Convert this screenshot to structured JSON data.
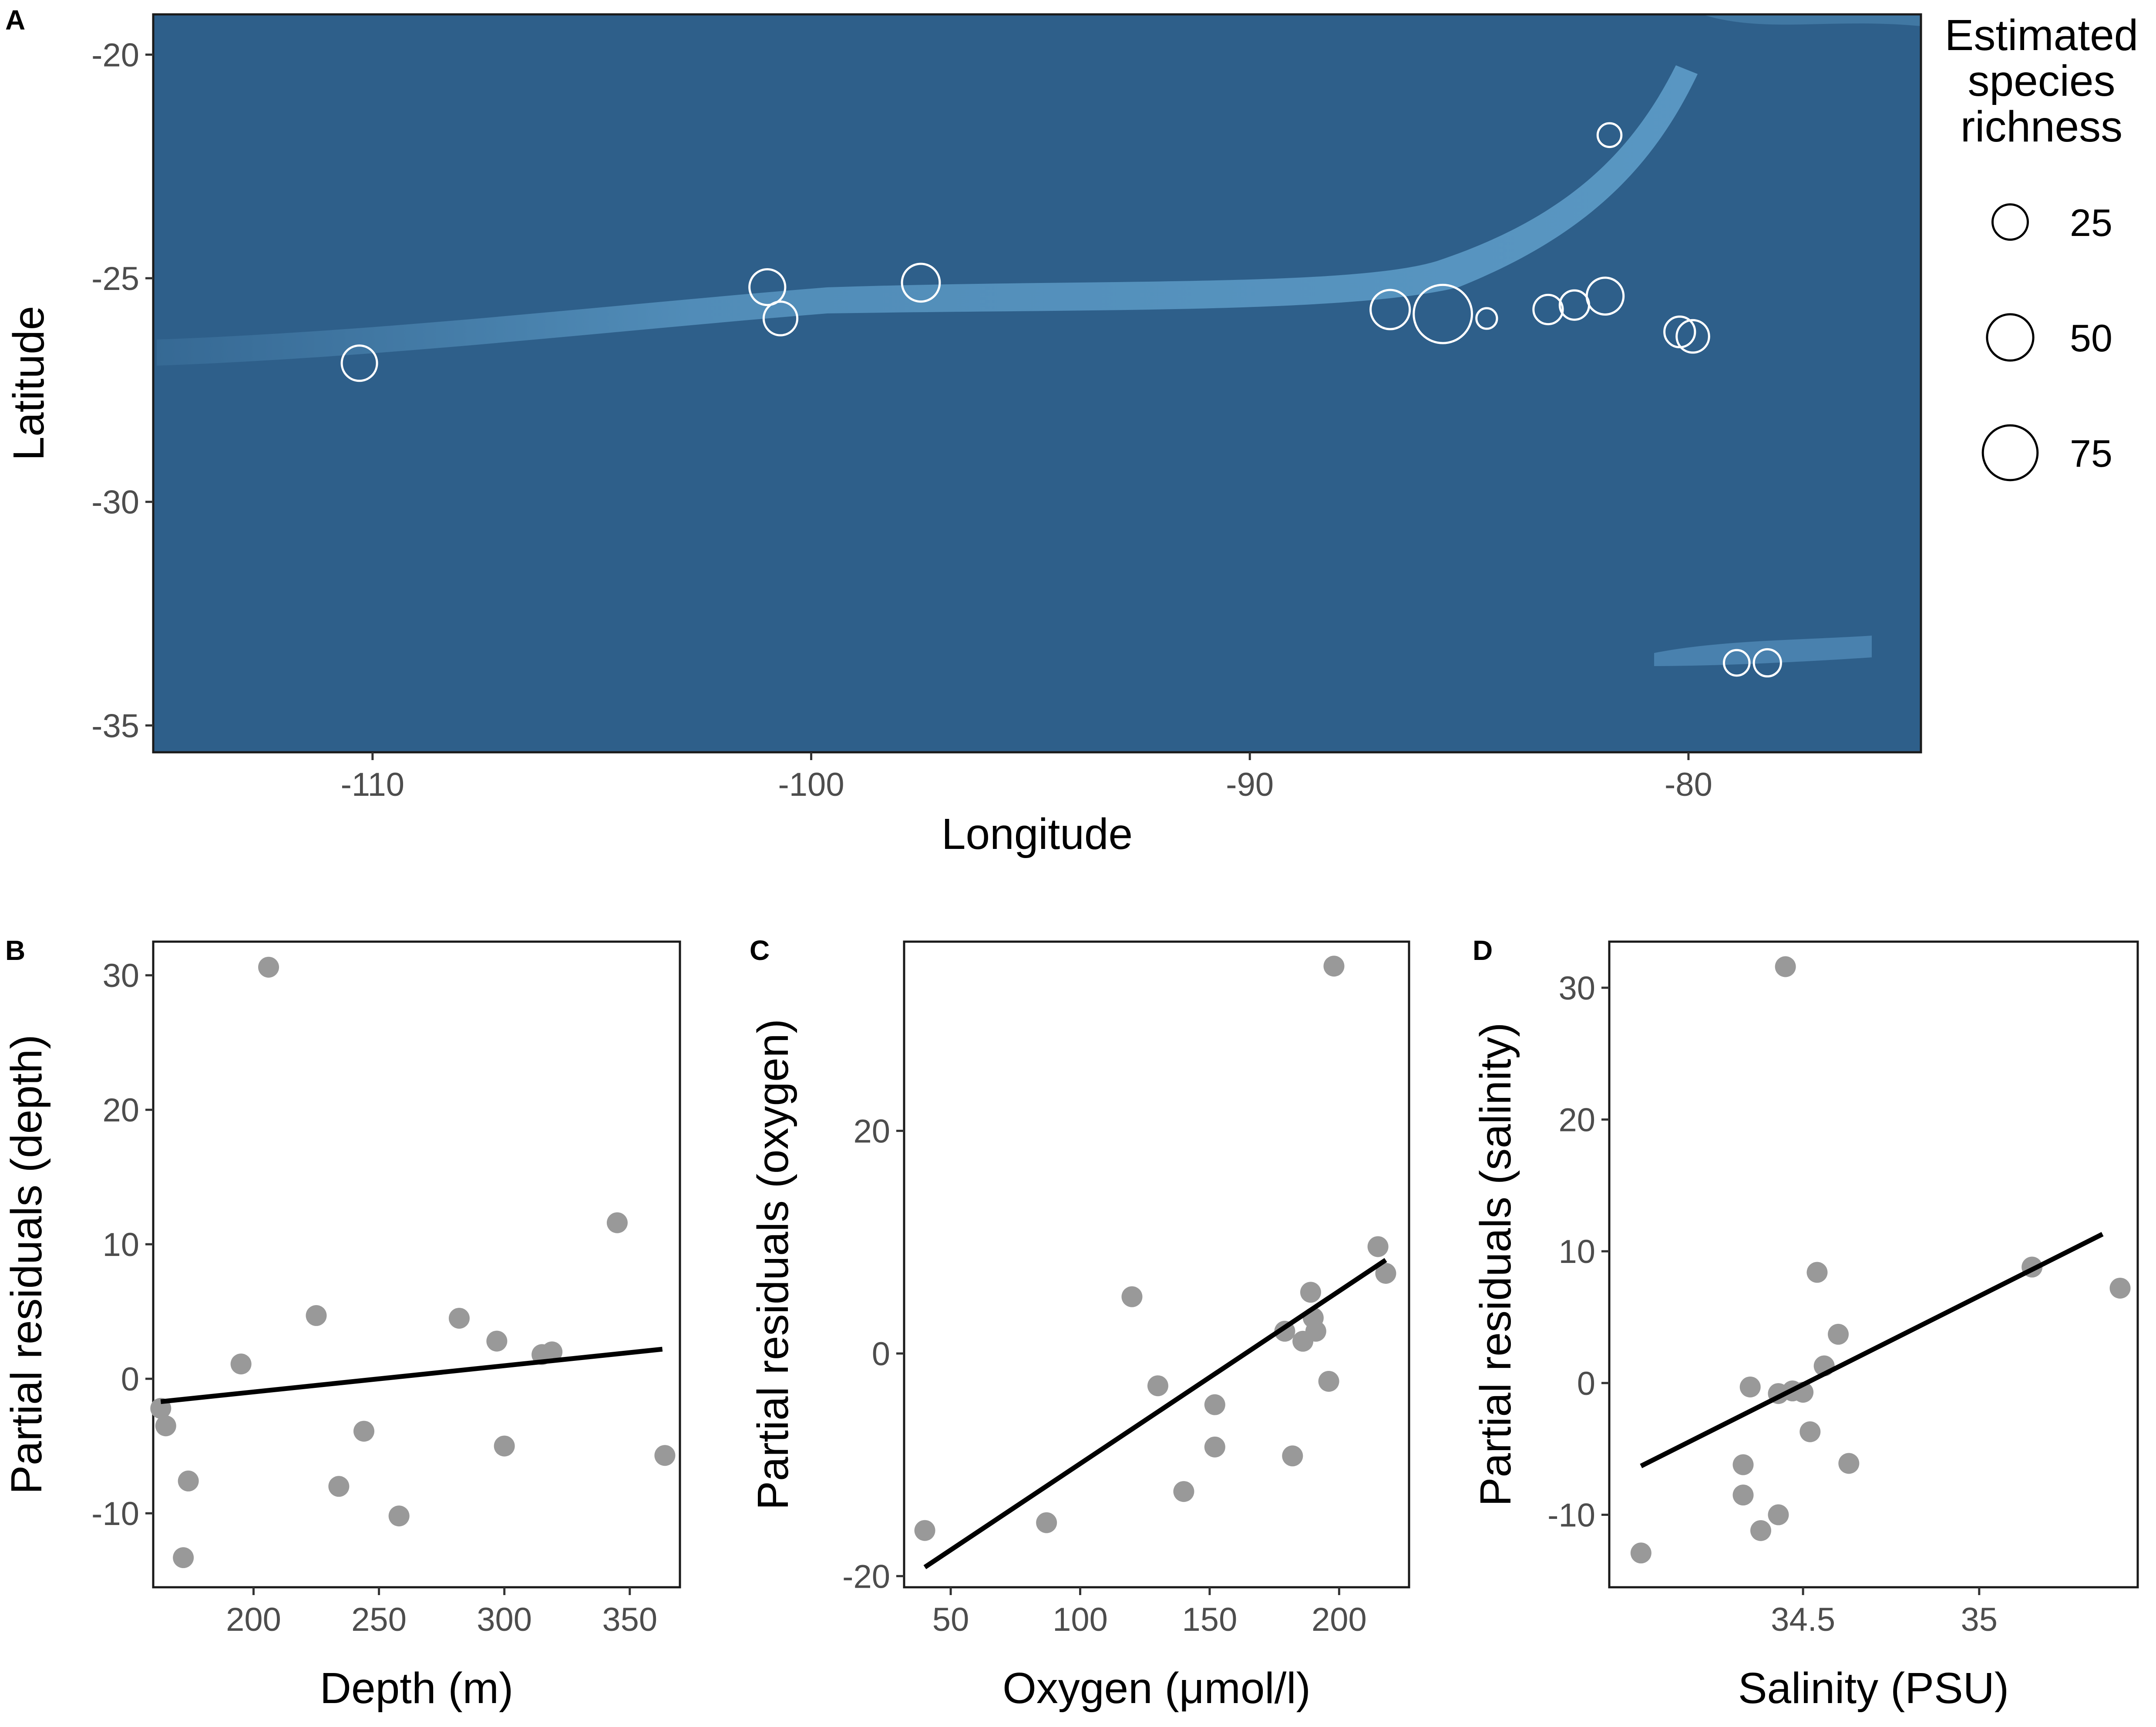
{
  "chart_data": [
    {
      "type": "scatter",
      "panel": "A",
      "xlabel": "Longitude",
      "ylabel": "Latitude",
      "xlim": [
        -115,
        -74.7
      ],
      "ylim": [
        -35.6,
        -19.1
      ],
      "xticks": [
        -110,
        -100,
        -90,
        -80
      ],
      "yticks": [
        -20,
        -25,
        -30,
        -35
      ],
      "background": "#2e5f8a",
      "marker_color": "#ffffff",
      "size_legend": {
        "title": [
          "Estimated",
          "species",
          "richness"
        ],
        "entries": [
          25,
          50,
          75
        ]
      },
      "points": [
        {
          "x": -110.3,
          "y": -26.9,
          "richness": 25
        },
        {
          "x": -101.0,
          "y": -25.2,
          "richness": 26
        },
        {
          "x": -100.7,
          "y": -25.9,
          "richness": 22
        },
        {
          "x": -97.5,
          "y": -25.1,
          "richness": 30
        },
        {
          "x": -86.8,
          "y": -25.7,
          "richness": 33
        },
        {
          "x": -85.6,
          "y": -25.8,
          "richness": 87
        },
        {
          "x": -84.6,
          "y": -25.9,
          "richness": 5
        },
        {
          "x": -83.2,
          "y": -25.7,
          "richness": 15
        },
        {
          "x": -82.6,
          "y": -25.6,
          "richness": 15
        },
        {
          "x": -81.9,
          "y": -25.4,
          "richness": 28
        },
        {
          "x": -81.8,
          "y": -21.8,
          "richness": 8
        },
        {
          "x": -80.2,
          "y": -26.2,
          "richness": 17
        },
        {
          "x": -79.9,
          "y": -26.3,
          "richness": 20
        },
        {
          "x": -78.9,
          "y": -33.6,
          "richness": 10
        },
        {
          "x": -78.2,
          "y": -33.6,
          "richness": 12
        }
      ]
    },
    {
      "type": "scatter",
      "panel": "B",
      "xlabel": "Depth (m)",
      "ylabel": "Partial residuals (depth)",
      "xlim": [
        160,
        370
      ],
      "ylim": [
        -15.5,
        32.5
      ],
      "xticks": [
        200,
        250,
        300,
        350
      ],
      "yticks": [
        -10,
        0,
        10,
        20,
        30
      ],
      "point_color": "#999999",
      "line_color": "#000000",
      "points": [
        {
          "x": 163,
          "y": -2.2
        },
        {
          "x": 165,
          "y": -3.5
        },
        {
          "x": 172,
          "y": -13.3
        },
        {
          "x": 174,
          "y": -7.6
        },
        {
          "x": 195,
          "y": 1.1
        },
        {
          "x": 206,
          "y": 30.6
        },
        {
          "x": 225,
          "y": 4.7
        },
        {
          "x": 234,
          "y": -8.0
        },
        {
          "x": 244,
          "y": -3.9
        },
        {
          "x": 258,
          "y": -10.2
        },
        {
          "x": 282,
          "y": 4.5
        },
        {
          "x": 297,
          "y": 2.8
        },
        {
          "x": 300,
          "y": -5.0
        },
        {
          "x": 315,
          "y": 1.8
        },
        {
          "x": 319,
          "y": 2.0
        },
        {
          "x": 345,
          "y": 11.6
        },
        {
          "x": 364,
          "y": -5.7
        }
      ],
      "fit": {
        "x": [
          163,
          363
        ],
        "y": [
          -1.7,
          2.2
        ]
      }
    },
    {
      "type": "scatter",
      "panel": "C",
      "xlabel": "Oxygen (μmol/l)",
      "ylabel": "Partial residuals (oxygen)",
      "xlim": [
        32,
        227
      ],
      "ylim": [
        -21,
        37
      ],
      "xticks": [
        50,
        100,
        150,
        200
      ],
      "yticks": [
        -20,
        0,
        20
      ],
      "point_color": "#999999",
      "line_color": "#000000",
      "points": [
        {
          "x": 40,
          "y": -15.9
        },
        {
          "x": 87,
          "y": -15.2
        },
        {
          "x": 120,
          "y": 5.1
        },
        {
          "x": 130,
          "y": -2.9
        },
        {
          "x": 140,
          "y": -12.4
        },
        {
          "x": 152,
          "y": -4.6
        },
        {
          "x": 152,
          "y": -8.4
        },
        {
          "x": 179,
          "y": 2.0
        },
        {
          "x": 182,
          "y": -9.2
        },
        {
          "x": 186,
          "y": 1.1
        },
        {
          "x": 189,
          "y": 5.5
        },
        {
          "x": 190,
          "y": 3.2
        },
        {
          "x": 191,
          "y": 2.0
        },
        {
          "x": 196,
          "y": -2.5
        },
        {
          "x": 198,
          "y": 34.8
        },
        {
          "x": 215,
          "y": 9.6
        },
        {
          "x": 218,
          "y": 7.2
        }
      ],
      "fit": {
        "x": [
          40,
          218
        ],
        "y": [
          -19.2,
          8.4
        ]
      }
    },
    {
      "type": "scatter",
      "panel": "D",
      "xlabel": "Salinity (PSU)",
      "ylabel": "Partial residuals (salinity)",
      "xlim": [
        33.95,
        35.45
      ],
      "ylim": [
        -15.5,
        33.5
      ],
      "xticks": [
        34.5,
        35.0
      ],
      "yticks": [
        -10,
        0,
        10,
        20,
        30
      ],
      "point_color": "#999999",
      "line_color": "#000000",
      "points": [
        {
          "x": 34.04,
          "y": -12.9
        },
        {
          "x": 34.33,
          "y": -6.2
        },
        {
          "x": 34.33,
          "y": -8.5
        },
        {
          "x": 34.35,
          "y": -0.3
        },
        {
          "x": 34.38,
          "y": -11.2
        },
        {
          "x": 34.43,
          "y": -10.0
        },
        {
          "x": 34.43,
          "y": -0.8
        },
        {
          "x": 34.45,
          "y": 31.6
        },
        {
          "x": 34.47,
          "y": -0.6
        },
        {
          "x": 34.5,
          "y": -0.7
        },
        {
          "x": 34.52,
          "y": -3.7
        },
        {
          "x": 34.54,
          "y": 8.4
        },
        {
          "x": 34.56,
          "y": 1.3
        },
        {
          "x": 34.6,
          "y": 3.7
        },
        {
          "x": 34.63,
          "y": -6.1
        },
        {
          "x": 35.15,
          "y": 8.8
        },
        {
          "x": 35.4,
          "y": 7.2
        }
      ],
      "fit": {
        "x": [
          34.04,
          35.35
        ],
        "y": [
          -6.3,
          11.3
        ]
      }
    }
  ]
}
